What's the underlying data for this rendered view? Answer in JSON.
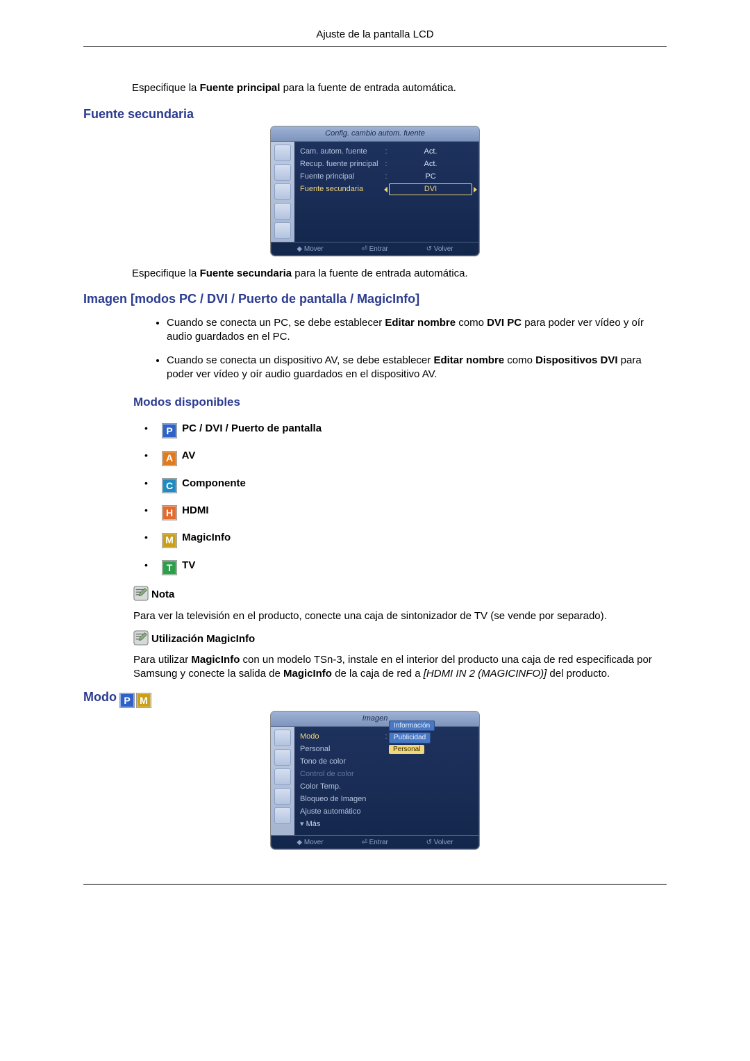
{
  "pageHeader": "Ajuste de la pantalla LCD",
  "intro1_pre": "Especifique la ",
  "intro1_b": "Fuente principal",
  "intro1_post": " para la fuente de entrada automática.",
  "h_fuente_sec": "Fuente secundaria",
  "menu1": {
    "title": "Config. cambio autom. fuente",
    "rows": [
      {
        "lbl": "Cam. autom. fuente",
        "val": "Act."
      },
      {
        "lbl": "Recup. fuente principal",
        "val": "Act."
      },
      {
        "lbl": "Fuente principal",
        "val": "PC"
      },
      {
        "lbl": "Fuente secundaria",
        "val": "DVI",
        "selected": true
      }
    ],
    "foot": [
      "◆ Mover",
      "⏎ Entrar",
      "↺ Volver"
    ]
  },
  "intro2_pre": "Especifique la ",
  "intro2_b": "Fuente secundaria",
  "intro2_post": " para la fuente de entrada automática.",
  "h_imagen": "Imagen [modos PC / DVI / Puerto de pantalla / MagicInfo]",
  "notes": {
    "n1_a": "Cuando se conecta un PC, se debe establecer ",
    "n1_b1": "Editar nombre",
    "n1_c": " como ",
    "n1_b2": "DVI PC",
    "n1_d": " para poder ver vídeo y oír audio guardados en el PC.",
    "n2_a": "Cuando se conecta un dispositivo AV, se debe establecer ",
    "n2_b1": "Editar nombre",
    "n2_c": " como ",
    "n2_b2": "Dispositivos DVI",
    "n2_d": " para poder ver vídeo y oír audio guardados en el dispositivo AV."
  },
  "h_modos": "Modos disponibles",
  "modes": [
    {
      "letter": "P",
      "color": "#2e62c8",
      "label": "PC / DVI / Puerto de pantalla"
    },
    {
      "letter": "A",
      "color": "#e07a1f",
      "label": "AV"
    },
    {
      "letter": "C",
      "color": "#1f8bc0",
      "label": "Componente"
    },
    {
      "letter": "H",
      "color": "#e46b2e",
      "label": "HDMI"
    },
    {
      "letter": "M",
      "color": "#c9a018",
      "label": "MagicInfo"
    },
    {
      "letter": "T",
      "color": "#2d9f4a",
      "label": "TV"
    }
  ],
  "nota_label": "Nota",
  "nota_text": "Para ver la televisión en el producto, conecte una caja de sintonizador de TV (se vende por separado).",
  "util_label": "Utilización MagicInfo",
  "util_a": "Para utilizar ",
  "util_b1": "MagicInfo",
  "util_c": " con un modelo TSn-3, instale en el interior del producto una caja de red especificada por Samsung y conecte la salida de ",
  "util_b2": "MagicInfo",
  "util_d": " de la caja de red a ",
  "util_i": "[HDMI IN 2 (MAGICINFO)]",
  "util_e": " del producto.",
  "h_modo": "Modo ",
  "modo_badges": [
    {
      "letter": "P",
      "color": "#2e62c8"
    },
    {
      "letter": "M",
      "color": "#c9a018"
    }
  ],
  "menu2": {
    "title": "Imagen",
    "rows": [
      {
        "lbl": "Modo",
        "opts": [
          "Información",
          "Publicidad"
        ],
        "optSel": "Personal",
        "selected": true
      },
      {
        "lbl": "Personal"
      },
      {
        "lbl": "Tono de color"
      },
      {
        "lbl": "Control de color",
        "dim": true
      },
      {
        "lbl": "Color Temp."
      },
      {
        "lbl": "Bloqueo de Imagen"
      },
      {
        "lbl": "Ajuste automático"
      },
      {
        "lbl": "▾ Más",
        "more": true
      }
    ],
    "foot": [
      "◆ Mover",
      "⏎ Entrar",
      "↺ Volver"
    ]
  }
}
